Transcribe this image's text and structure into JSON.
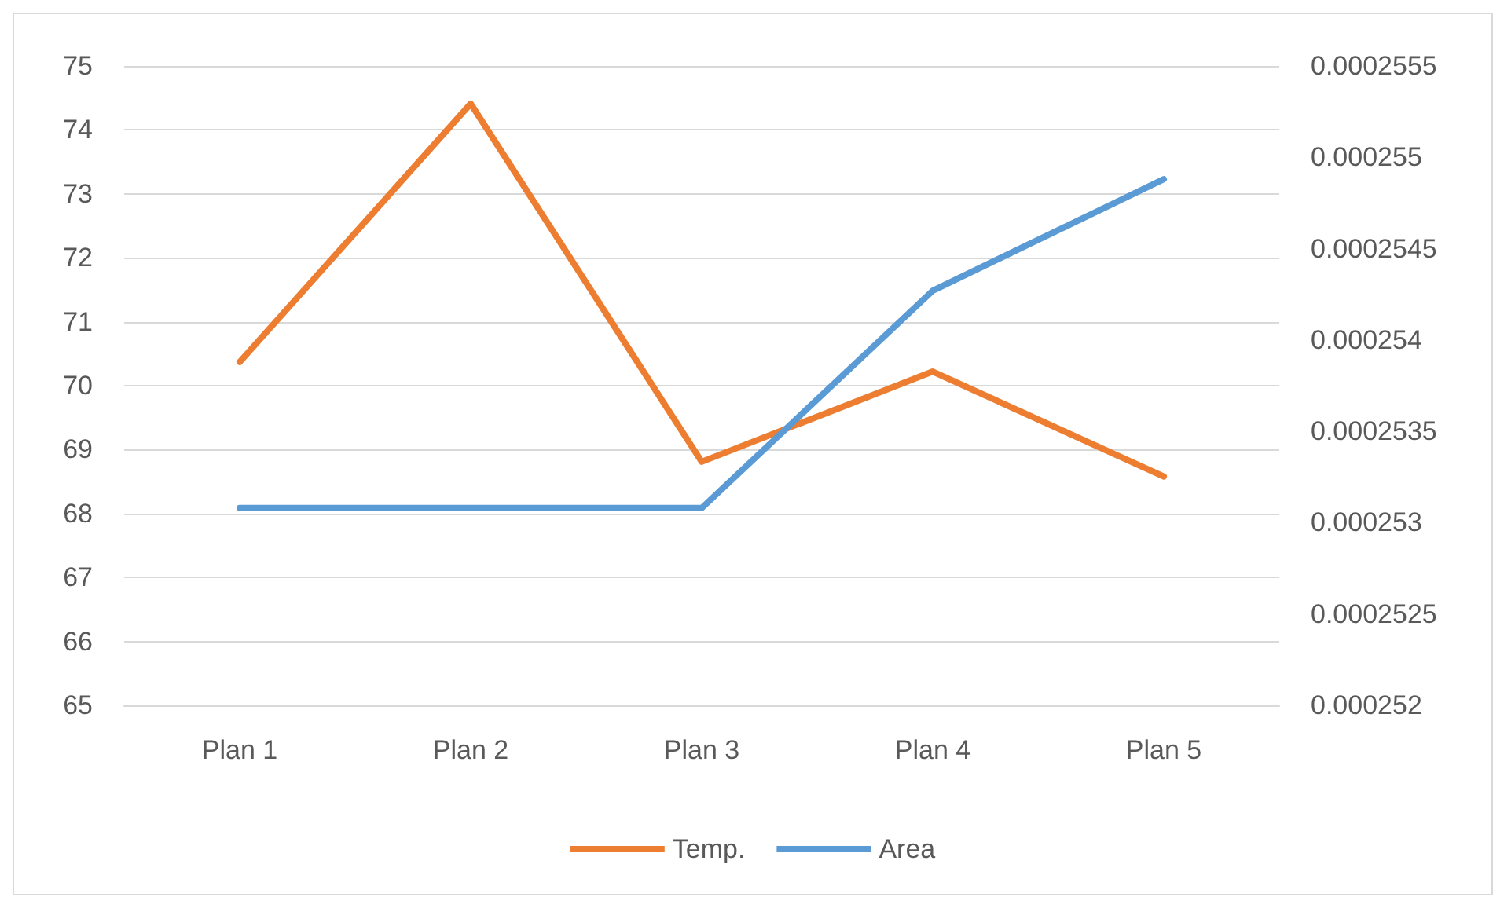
{
  "chart_data": {
    "type": "line",
    "categories": [
      "Plan 1",
      "Plan 2",
      "Plan 3",
      "Plan 4",
      "Plan 5"
    ],
    "series": [
      {
        "name": "Temp.",
        "color": "#ed7d31",
        "values": [
          70.37,
          74.41,
          68.81,
          70.22,
          68.58
        ]
      },
      {
        "name": "Area",
        "color": "#5b9bd5",
        "axis": "y2",
        "values": [
          0.00025308,
          0.00025308,
          0.00025308,
          0.00025427,
          0.00025488
        ]
      }
    ],
    "ylim": [
      65,
      75
    ],
    "yticks": [
      65,
      66,
      67,
      68,
      69,
      70,
      71,
      72,
      73,
      74,
      75
    ],
    "y2lim": [
      0.000252,
      0.0002555
    ],
    "y2ticks": [
      0.000252,
      0.0002525,
      0.000253,
      0.0002535,
      0.000254,
      0.0002545,
      0.000255,
      0.0002555
    ],
    "grid": "y",
    "legend": "bottom",
    "marker": "none",
    "line_style": "solid"
  }
}
